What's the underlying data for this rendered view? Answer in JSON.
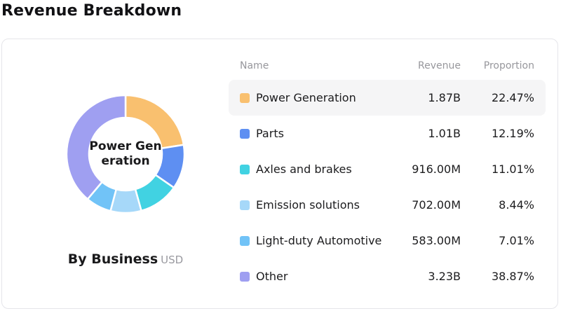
{
  "page": {
    "title": "Revenue Breakdown"
  },
  "chart": {
    "center_label_lines": [
      "Power Gen",
      "eration"
    ],
    "caption": {
      "title": "By Business",
      "unit": "USD"
    }
  },
  "table": {
    "headers": {
      "name": "Name",
      "revenue": "Revenue",
      "proportion": "Proportion"
    },
    "rows": [
      {
        "name": "Power Generation",
        "revenue": "1.87B",
        "proportion": "22.47%",
        "color": "#f9c06f",
        "highlighted": true
      },
      {
        "name": "Parts",
        "revenue": "1.01B",
        "proportion": "12.19%",
        "color": "#5e8ff2",
        "highlighted": false
      },
      {
        "name": "Axles and brakes",
        "revenue": "916.00M",
        "proportion": "11.01%",
        "color": "#41d2e2",
        "highlighted": false
      },
      {
        "name": "Emission solutions",
        "revenue": "702.00M",
        "proportion": "8.44%",
        "color": "#a6d8f9",
        "highlighted": false
      },
      {
        "name": "Light-duty Automotive",
        "revenue": "583.00M",
        "proportion": "7.01%",
        "color": "#71c3f7",
        "highlighted": false
      },
      {
        "name": "Other",
        "revenue": "3.23B",
        "proportion": "38.87%",
        "color": "#9f9ff1",
        "highlighted": false
      }
    ]
  },
  "chart_data": {
    "type": "pie",
    "donut": true,
    "title": "Revenue Breakdown",
    "subtitle": "By Business",
    "unit": "USD",
    "center_label": "Power Generation",
    "start_angle_deg": 0,
    "direction": "clockwise",
    "categories": [
      "Power Generation",
      "Parts",
      "Axles and brakes",
      "Emission solutions",
      "Light-duty Automotive",
      "Other"
    ],
    "values_percent": [
      22.47,
      12.19,
      11.01,
      8.44,
      7.01,
      38.87
    ],
    "revenues": [
      "1.87B",
      "1.01B",
      "916.00M",
      "702.00M",
      "583.00M",
      "3.23B"
    ],
    "colors": [
      "#f9c06f",
      "#5e8ff2",
      "#41d2e2",
      "#a6d8f9",
      "#71c3f7",
      "#9f9ff1"
    ],
    "legend_position": "right-table"
  }
}
